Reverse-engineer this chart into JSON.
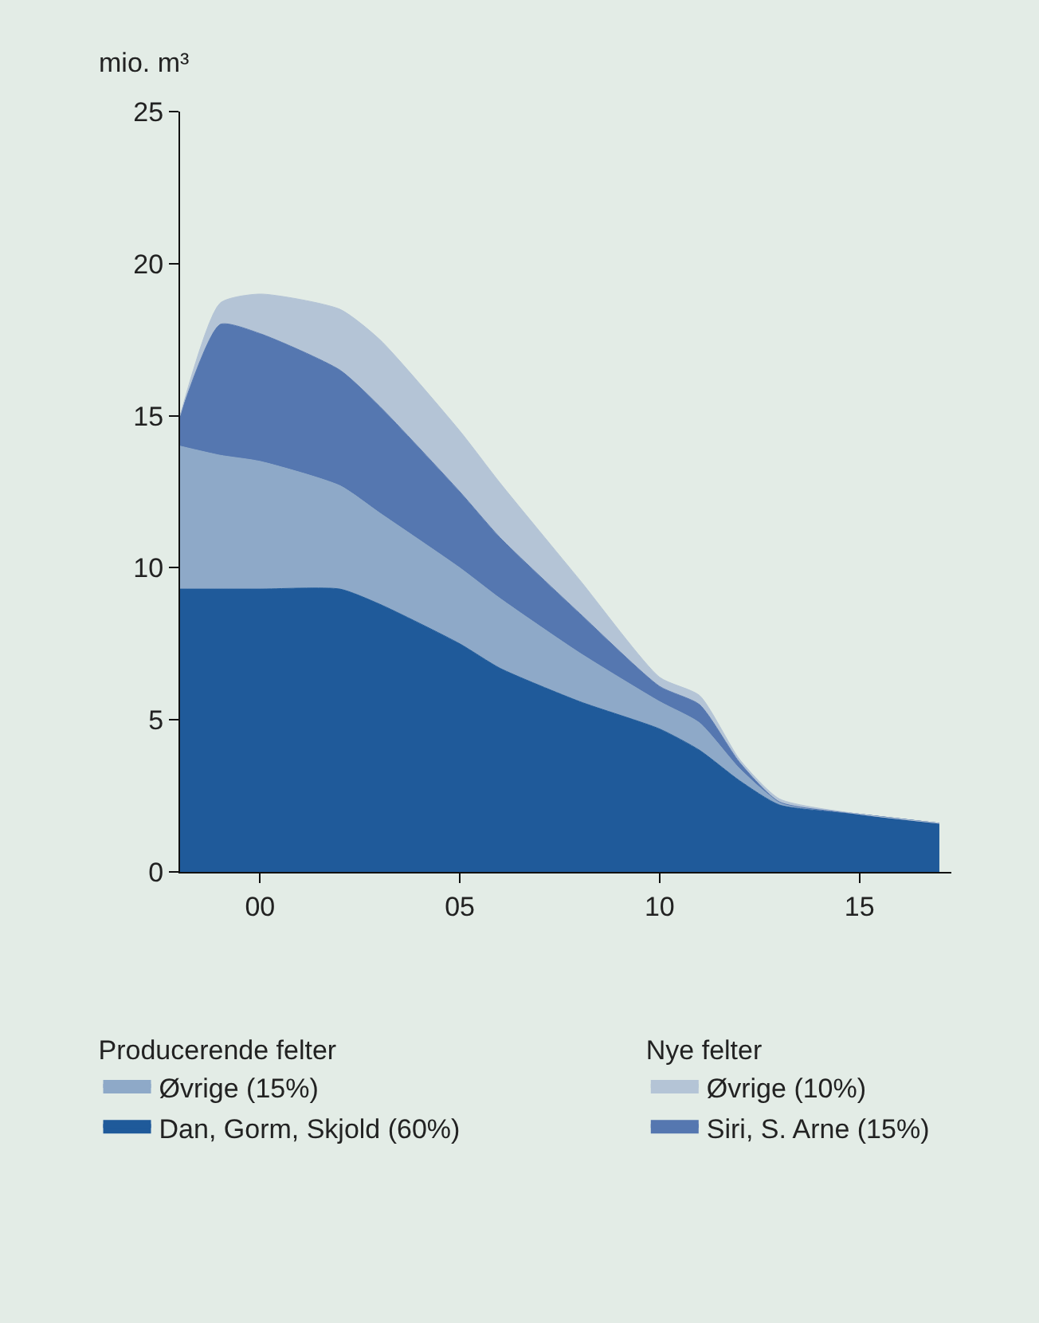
{
  "chart_data": {
    "type": "area",
    "stacked": true,
    "ylabel": "mio. m³",
    "x": [
      -2,
      -1,
      0,
      2,
      3,
      5,
      6,
      8,
      10,
      11,
      12,
      13,
      15,
      17
    ],
    "series": [
      {
        "name": "Dan, Gorm, Skjold (60%)",
        "color": "#1f5a9a",
        "values": [
          9.3,
          9.3,
          9.3,
          9.3,
          8.8,
          7.5,
          6.7,
          5.6,
          4.7,
          4.0,
          3.0,
          2.2,
          1.9,
          1.6
        ]
      },
      {
        "name": "Øvrige (15%)",
        "color": "#8ea9c8",
        "values": [
          4.7,
          4.4,
          4.2,
          3.4,
          3.0,
          2.5,
          2.3,
          1.6,
          0.9,
          0.9,
          0.4,
          0.1,
          0,
          0
        ]
      },
      {
        "name": "Siri, S. Arne (15%)",
        "color": "#5577b0",
        "values": [
          1.0,
          4.3,
          4.2,
          3.8,
          3.5,
          2.5,
          2.0,
          1.3,
          0.5,
          0.6,
          0.2,
          0,
          0,
          0
        ]
      },
      {
        "name": "Øvrige (10%)",
        "color": "#b4c4d6",
        "values": [
          0,
          0.7,
          1.3,
          2.0,
          2.2,
          2.0,
          1.8,
          1.1,
          0.3,
          0.3,
          0.1,
          0.1,
          0,
          0
        ]
      }
    ],
    "legend_title": [
      "Producerende felter",
      "Nye felter"
    ],
    "legend": "bottom",
    "grid": false,
    "xlim": [
      -2,
      17.3
    ],
    "xticks": [
      {
        "value": 0,
        "label": "00"
      },
      {
        "value": 5,
        "label": "05"
      },
      {
        "value": 10,
        "label": "10"
      },
      {
        "value": 15,
        "label": "15"
      }
    ],
    "ylim": [
      0,
      25
    ],
    "yticks": [
      0,
      5,
      10,
      15,
      20,
      25
    ]
  }
}
